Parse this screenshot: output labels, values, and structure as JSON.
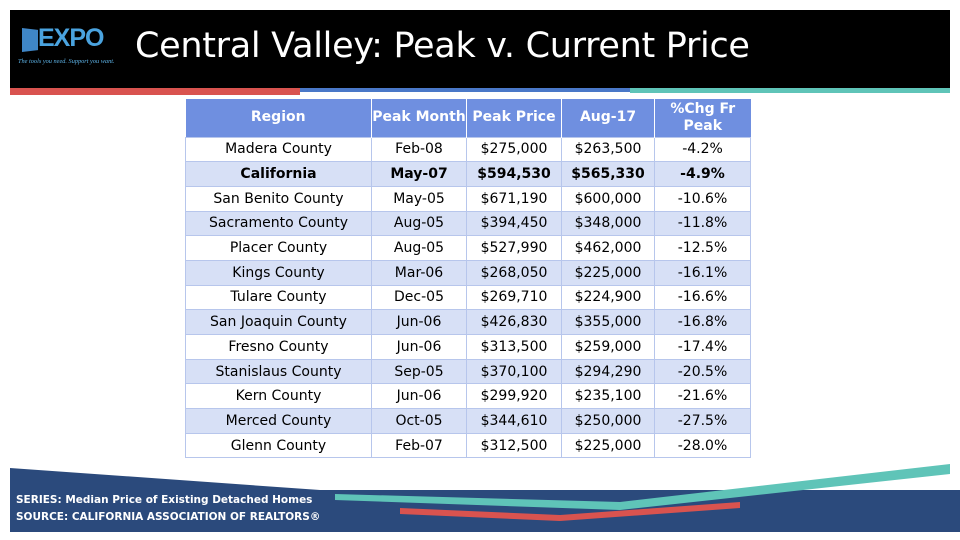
{
  "logo": {
    "word": "EXPO",
    "tagline": "The tools you need. Support you want."
  },
  "title": "Central Valley: Peak v. Current Price",
  "table": {
    "headers": [
      "Region",
      "Peak Month",
      "Peak Price",
      "Aug-17",
      "%Chg Fr Peak"
    ],
    "rows": [
      [
        "Madera County",
        "Feb-08",
        "$275,000",
        "$263,500",
        "-4.2%"
      ],
      [
        "California",
        "May-07",
        "$594,530",
        "$565,330",
        "-4.9%"
      ],
      [
        "San Benito County",
        "May-05",
        "$671,190",
        "$600,000",
        "-10.6%"
      ],
      [
        "Sacramento County",
        "Aug-05",
        "$394,450",
        "$348,000",
        "-11.8%"
      ],
      [
        "Placer County",
        "Aug-05",
        "$527,990",
        "$462,000",
        "-12.5%"
      ],
      [
        "Kings County",
        "Mar-06",
        "$268,050",
        "$225,000",
        "-16.1%"
      ],
      [
        "Tulare County",
        "Dec-05",
        "$269,710",
        "$224,900",
        "-16.6%"
      ],
      [
        "San Joaquin County",
        "Jun-06",
        "$426,830",
        "$355,000",
        "-16.8%"
      ],
      [
        "Fresno County",
        "Jun-06",
        "$313,500",
        "$259,000",
        "-17.4%"
      ],
      [
        "Stanislaus County",
        "Sep-05",
        "$370,100",
        "$294,290",
        "-20.5%"
      ],
      [
        "Kern County",
        "Jun-06",
        "$299,920",
        "$235,100",
        "-21.6%"
      ],
      [
        "Merced County",
        "Oct-05",
        "$344,610",
        "$250,000",
        "-27.5%"
      ],
      [
        "Glenn County",
        "Feb-07",
        "$312,500",
        "$225,000",
        "-28.0%"
      ]
    ]
  },
  "footer": {
    "series": "SERIES: Median Price of Existing Detached Homes",
    "source": "SOURCE:  CALIFORNIA ASSOCIATION OF REALTORS®"
  },
  "colors": {
    "header_bg": "#000000",
    "table_header": "#6f8fe0",
    "row_alt": "#d7e0f6",
    "footer_navy": "#2b4a7c",
    "accent_red": "#d9534f",
    "accent_teal": "#5fc4b8"
  }
}
